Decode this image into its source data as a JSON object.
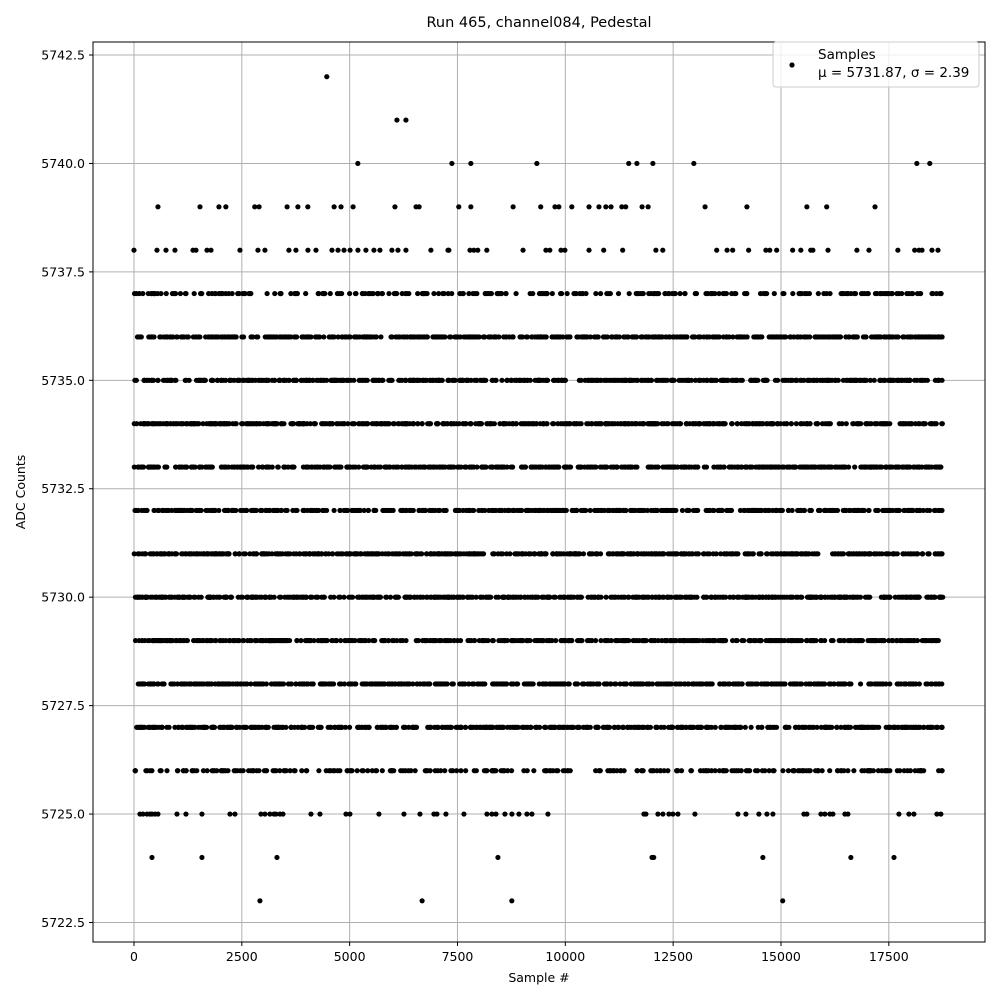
{
  "chart_data": {
    "type": "scatter",
    "title": "Run 465, channel084, Pedestal",
    "xlabel": "Sample #",
    "ylabel": "ADC Counts",
    "xlim": [
      -950,
      19730
    ],
    "ylim": [
      5722.05,
      5742.8
    ],
    "xticks": [
      0,
      2500,
      5000,
      7500,
      10000,
      12500,
      15000,
      17500
    ],
    "xtick_labels": [
      "0",
      "2500",
      "5000",
      "7500",
      "10000",
      "12500",
      "15000",
      "17500"
    ],
    "yticks": [
      5722.5,
      5725.0,
      5727.5,
      5730.0,
      5732.5,
      5735.0,
      5737.5,
      5740.0,
      5742.5
    ],
    "ytick_labels": [
      "5722.5",
      "5725.0",
      "5727.5",
      "5730.0",
      "5732.5",
      "5735.0",
      "5737.5",
      "5740.0",
      "5742.5"
    ],
    "grid": true,
    "legend_placement": "top-right",
    "legend": {
      "label": "Samples",
      "stats": "μ = 5731.87, σ = 2.39"
    },
    "marker_color": "#000000",
    "x_range": [
      0,
      18750
    ],
    "dense_levels": [
      5726,
      5727,
      5728,
      5729,
      5730,
      5731,
      5732,
      5733,
      5734,
      5735,
      5736,
      5737
    ],
    "sparse_points": {
      "5742": [
        4470
      ],
      "5741": [
        6096,
        6305
      ],
      "5740": [
        5190,
        7370,
        7810,
        9340,
        11470,
        11660,
        12030,
        12980,
        18150,
        18450
      ],
      "5739": [
        556,
        1530,
        1970,
        2130,
        2800,
        2900,
        3550,
        3800,
        4030,
        4640,
        4800,
        5080,
        6050,
        6540,
        6610,
        7530,
        7810,
        8790,
        9430,
        9760,
        9850,
        10150,
        10550,
        10780,
        10940,
        11060,
        11310,
        11400,
        11780,
        11920,
        13240,
        14210,
        15600,
        16060,
        17180
      ],
      "5738": [
        0,
        533,
        742,
        950,
        1368,
        1437,
        1692,
        1785,
        2457,
        2874,
        3036,
        3592,
        3755,
        4033,
        4219,
        4590,
        4730,
        4870,
        5010,
        5192,
        5377,
        5563,
        5702,
        5980,
        6120,
        6305,
        6884,
        7280,
        7300,
        7790,
        7880,
        7970,
        8180,
        9020,
        9550,
        9640,
        9900,
        9990,
        10550,
        10890,
        11330,
        12100,
        12260,
        13510,
        13750,
        13880,
        14250,
        14650,
        14740,
        14900,
        15270,
        15460,
        15690,
        15740,
        16090,
        16760,
        17040,
        17710,
        18100,
        18200,
        18270,
        18500,
        18640
      ],
      "5725": [
        139,
        209,
        301,
        371,
        417,
        487,
        556,
        997,
        1205,
        1576,
        2225,
        2341,
        2944,
        3036,
        3152,
        3245,
        3292,
        3384,
        3454,
        4103,
        4312,
        4915,
        5007,
        5679,
        6259,
        6630,
        6954,
        7024,
        7232,
        7650,
        8183,
        8299,
        8392,
        8600,
        8762,
        8925,
        9110,
        9226,
        9597,
        11822,
        11869,
        12147,
        12263,
        12402,
        12495,
        12611,
        13005,
        14001,
        14187,
        14488,
        14674,
        14813,
        15531,
        15601,
        15926,
        16018,
        16134,
        16204,
        16482,
        16552,
        17734,
        17966,
        18082,
        18615,
        18707
      ],
      "5724": [
        417,
        1576,
        3315,
        8438,
        12010,
        12050,
        14580,
        16620,
        17620
      ],
      "5723": [
        2920,
        6680,
        8760,
        15040
      ]
    }
  }
}
